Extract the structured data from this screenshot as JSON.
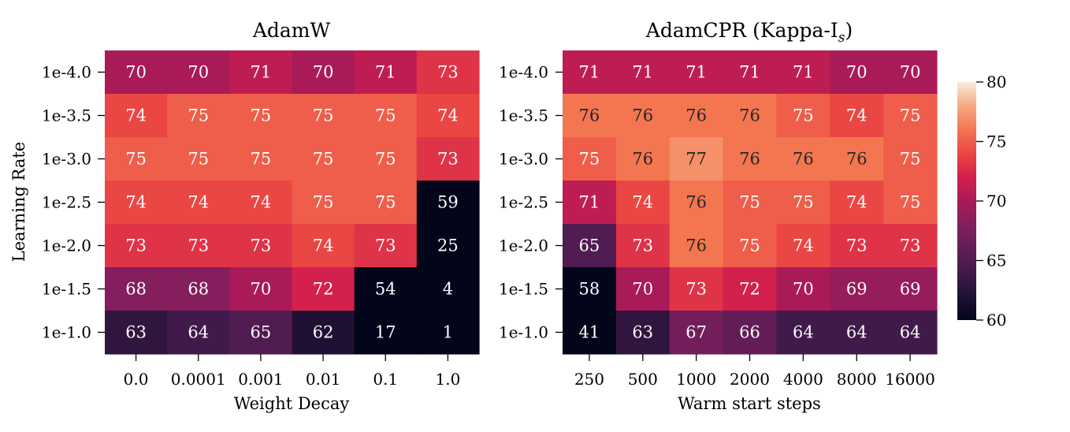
{
  "chart_data": [
    {
      "type": "heatmap",
      "title": "AdamW",
      "xlabel": "Weight Decay",
      "ylabel": "Learning Rate",
      "x_categories": [
        "0.0",
        "0.0001",
        "0.001",
        "0.01",
        "0.1",
        "1.0"
      ],
      "y_categories": [
        "1e-4.0",
        "1e-3.5",
        "1e-3.0",
        "1e-2.5",
        "1e-2.0",
        "1e-1.5",
        "1e-1.0"
      ],
      "values": [
        [
          70,
          70,
          71,
          70,
          71,
          73
        ],
        [
          74,
          75,
          75,
          75,
          75,
          74
        ],
        [
          75,
          75,
          75,
          75,
          75,
          73
        ],
        [
          74,
          74,
          74,
          75,
          75,
          59
        ],
        [
          73,
          73,
          73,
          74,
          73,
          25
        ],
        [
          68,
          68,
          70,
          72,
          54,
          4
        ],
        [
          63,
          64,
          65,
          62,
          17,
          1
        ]
      ]
    },
    {
      "type": "heatmap",
      "title_main": "AdamCPR (Kappa-I",
      "title_sub": "s",
      "title_end": ")",
      "xlabel": "Warm start steps",
      "ylabel": "",
      "x_categories": [
        "250",
        "500",
        "1000",
        "2000",
        "4000",
        "8000",
        "16000"
      ],
      "y_categories": [
        "1e-4.0",
        "1e-3.5",
        "1e-3.0",
        "1e-2.5",
        "1e-2.0",
        "1e-1.5",
        "1e-1.0"
      ],
      "values": [
        [
          71,
          71,
          71,
          71,
          71,
          70,
          70
        ],
        [
          76,
          76,
          76,
          76,
          75,
          74,
          75
        ],
        [
          75,
          76,
          77,
          76,
          76,
          76,
          75
        ],
        [
          71,
          74,
          76,
          75,
          75,
          74,
          75
        ],
        [
          65,
          73,
          76,
          75,
          74,
          73,
          73
        ],
        [
          58,
          70,
          73,
          72,
          70,
          69,
          69
        ],
        [
          41,
          63,
          67,
          66,
          64,
          64,
          64
        ]
      ]
    }
  ],
  "colorbar": {
    "vmin": 60,
    "vmax": 80,
    "ticks": [
      "60",
      "65",
      "70",
      "75",
      "80"
    ],
    "colormap": "rocket"
  }
}
